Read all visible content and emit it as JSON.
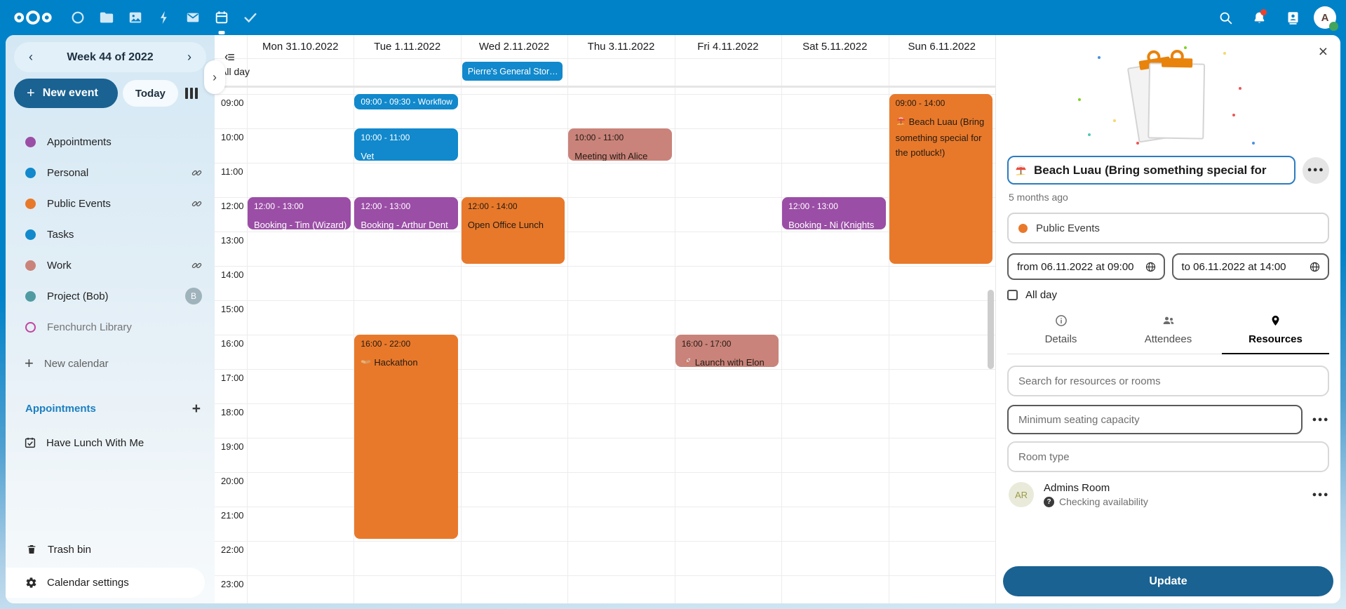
{
  "colors": {
    "topbar": "#0082c9",
    "primary_button": "#1a6292",
    "accent": "#0082c9",
    "event_blue": "#1189cc",
    "event_purple": "#9b4ea6",
    "event_orange": "#e8792b",
    "event_salmon": "#c9837a"
  },
  "topbar": {
    "apps": [
      "dashboard",
      "files",
      "photos",
      "activity",
      "mail",
      "calendar",
      "tasks"
    ],
    "active_app": "calendar",
    "avatar_letter": "A"
  },
  "sidebar": {
    "prev": "‹",
    "next": "›",
    "week_label": "Week 44 of 2022",
    "new_event_label": "New event",
    "today_label": "Today",
    "calendars": [
      {
        "label": "Appointments",
        "color": "#9b4ea6"
      },
      {
        "label": "Personal",
        "color": "#1189cc",
        "shared": true
      },
      {
        "label": "Public Events",
        "color": "#e8792b",
        "shared": true
      },
      {
        "label": "Tasks",
        "color": "#1189cc"
      },
      {
        "label": "Work",
        "color": "#c9837a",
        "shared": true
      },
      {
        "label": "Project (Bob)",
        "color": "#509ba2",
        "avatar": "B"
      },
      {
        "label": "Fenchurch Library",
        "color": "#c2459e",
        "outline": true,
        "dimmed": true
      }
    ],
    "new_calendar_label": "New calendar",
    "appointments_heading": "Appointments",
    "appointment_items": [
      "Have Lunch With Me"
    ],
    "trash_label": "Trash bin",
    "settings_label": "Calendar settings"
  },
  "calendar": {
    "all_day_label": "All day",
    "days": [
      "Mon 31.10.2022",
      "Tue 1.11.2022",
      "Wed 2.11.2022",
      "Thu 3.11.2022",
      "Fri 4.11.2022",
      "Sat 5.11.2022",
      "Sun 6.11.2022"
    ],
    "times": [
      "09:00",
      "10:00",
      "11:00",
      "12:00",
      "13:00",
      "14:00",
      "15:00",
      "16:00",
      "17:00",
      "18:00",
      "19:00",
      "20:00",
      "21:00",
      "22:00",
      "23:00"
    ],
    "allday_events": [
      {
        "day": 2,
        "title": "Pierre's General Stor…",
        "color": "blue"
      }
    ],
    "events": [
      {
        "day": 0,
        "start": "12:00",
        "end": "13:00",
        "time": "12:00 - 13:00",
        "title": "Booking - Tim (Wizard)",
        "color": "purple",
        "nowrap": true
      },
      {
        "day": 1,
        "start": "09:00",
        "end": "09:30",
        "time": "09:00 - 09:30 - Workflow",
        "title": "",
        "color": "blue",
        "compact": true
      },
      {
        "day": 1,
        "start": "10:00",
        "end": "11:00",
        "time": "10:00 - 11:00",
        "title": "Vet",
        "color": "blue"
      },
      {
        "day": 1,
        "start": "12:00",
        "end": "13:00",
        "time": "12:00 - 13:00",
        "title": "Booking - Arthur Dent",
        "color": "purple",
        "nowrap": true
      },
      {
        "day": 1,
        "start": "16:00",
        "end": "22:00",
        "time": "16:00 - 22:00",
        "title": "Hackathon",
        "icon": "handshake",
        "color": "orange"
      },
      {
        "day": 2,
        "start": "12:00",
        "end": "14:00",
        "time": "12:00 - 14:00",
        "title": "Open Office Lunch",
        "color": "orange"
      },
      {
        "day": 3,
        "start": "10:00",
        "end": "11:00",
        "time": "10:00 - 11:00",
        "title": "Meeting with Alice",
        "color": "salmon"
      },
      {
        "day": 4,
        "start": "16:00",
        "end": "17:00",
        "time": "16:00 - 17:00",
        "title": "Launch with Elon",
        "icon": "rocket",
        "color": "salmon"
      },
      {
        "day": 5,
        "start": "12:00",
        "end": "13:00",
        "time": "12:00 - 13:00",
        "title": "Booking - Ni (Knights",
        "color": "purple",
        "nowrap": true
      },
      {
        "day": 6,
        "start": "09:00",
        "end": "14:00",
        "time": "09:00 - 14:00",
        "title": "Beach Luau (Bring something special for the potluck!)",
        "icon": "umbrella",
        "color": "orange"
      }
    ]
  },
  "panel": {
    "title": "Beach Luau (Bring something special for",
    "modified": "5 months ago",
    "calendar_name": "Public Events",
    "calendar_color": "#e8792b",
    "from_label": "from 06.11.2022 at 09:00",
    "to_label": "to 06.11.2022 at 14:00",
    "all_day_label": "All day",
    "tabs": [
      {
        "label": "Details",
        "icon": "info"
      },
      {
        "label": "Attendees",
        "icon": "attendees"
      },
      {
        "label": "Resources",
        "icon": "pin",
        "active": true
      }
    ],
    "search_placeholder": "Search for resources or rooms",
    "seating_placeholder": "Minimum seating capacity",
    "room_type_placeholder": "Room type",
    "resource": {
      "initials": "AR",
      "name": "Admins Room",
      "status": "Checking availability"
    },
    "update_label": "Update"
  }
}
